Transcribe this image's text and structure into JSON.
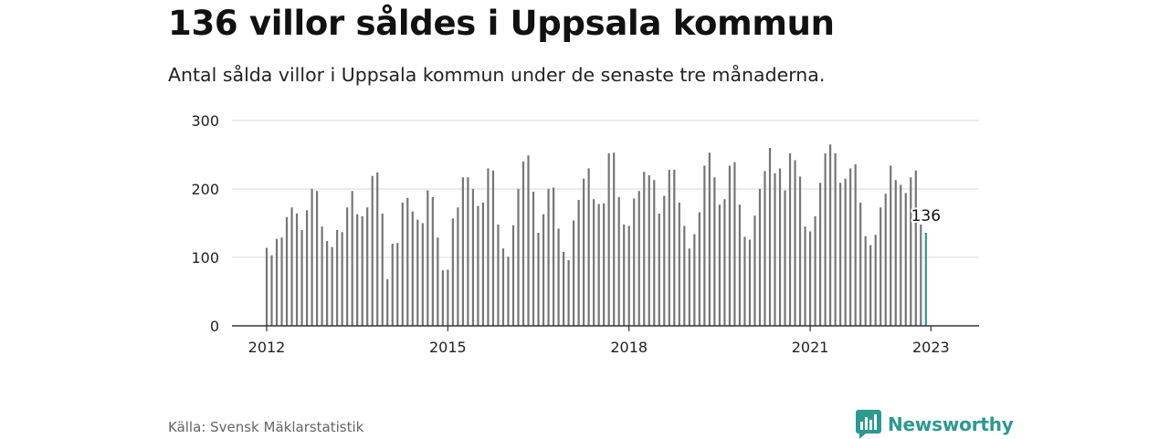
{
  "title": "136 villor såldes i Uppsala kommun",
  "subtitle": "Antal sålda villor i Uppsala kommun under de senaste tre månaderna.",
  "source": "Källa: Svensk Mäklarstatistik",
  "brand": {
    "name": "Newsworthy",
    "icon": "newsworthy-logo-icon"
  },
  "colors": {
    "bar": "#767676",
    "highlight": "#2a9d8f",
    "grid": "#d9d9d9",
    "axis": "#333333",
    "text": "#222222"
  },
  "chart_data": {
    "type": "bar",
    "x_start": "2012-01",
    "x_end": "2023-01",
    "values": [
      114,
      103,
      127,
      129,
      159,
      173,
      164,
      140,
      169,
      200,
      197,
      145,
      124,
      115,
      140,
      137,
      173,
      197,
      163,
      160,
      173,
      219,
      224,
      164,
      68,
      120,
      121,
      180,
      187,
      167,
      155,
      150,
      198,
      188,
      129,
      81,
      82,
      157,
      173,
      217,
      217,
      200,
      175,
      180,
      230,
      227,
      148,
      113,
      101,
      147,
      200,
      240,
      249,
      196,
      136,
      163,
      200,
      202,
      142,
      108,
      96,
      154,
      184,
      215,
      230,
      185,
      178,
      179,
      252,
      253,
      188,
      148,
      146,
      186,
      197,
      225,
      220,
      213,
      164,
      190,
      228,
      228,
      180,
      146,
      113,
      134,
      166,
      234,
      253,
      217,
      177,
      185,
      234,
      239,
      177,
      130,
      126,
      161,
      200,
      226,
      260,
      223,
      230,
      198,
      252,
      242,
      218,
      145,
      138,
      160,
      209,
      252,
      265,
      252,
      209,
      215,
      230,
      236,
      180,
      131,
      118,
      133,
      173,
      193,
      234,
      213,
      206,
      194,
      217,
      227,
      148,
      136
    ],
    "x_ticks": [
      "2012",
      "2015",
      "2018",
      "2021",
      "2023"
    ],
    "y_ticks": [
      0,
      100,
      200,
      300
    ],
    "ylim": [
      0,
      300
    ],
    "highlight_label": "136",
    "grid": true,
    "legend": "none"
  }
}
